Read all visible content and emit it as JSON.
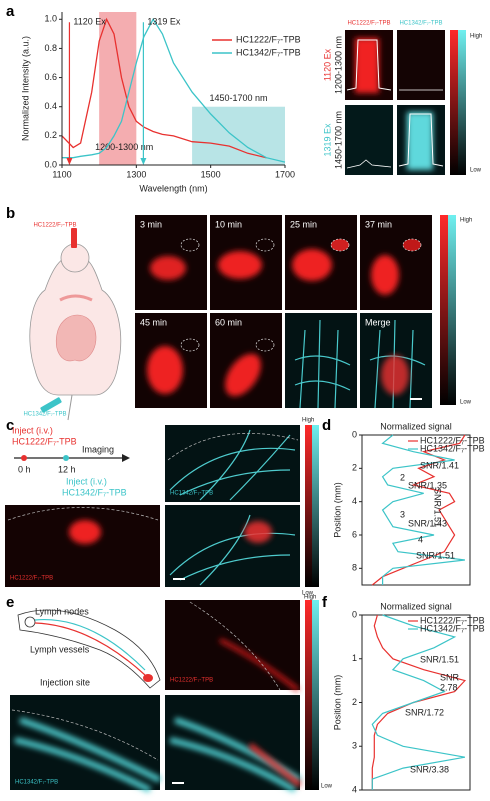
{
  "panel_labels": [
    "a",
    "b",
    "c",
    "d",
    "e",
    "f"
  ],
  "chart_data": [
    {
      "type": "line",
      "xlabel": "Wavelength (nm)",
      "ylabel": "Normalized Intensity (a.u.)",
      "x": [
        1100,
        1130,
        1150,
        1180,
        1200,
        1220,
        1240,
        1260,
        1280,
        1300,
        1320,
        1345,
        1370,
        1400,
        1450,
        1500,
        1550,
        1600,
        1650,
        1700
      ],
      "series": [
        {
          "name": "HC1222/F₇-TPB",
          "color": "#e8312f",
          "values": [
            0.2,
            0.12,
            0.15,
            0.5,
            0.85,
            1.0,
            0.9,
            0.6,
            0.4,
            0.3,
            0.26,
            0.23,
            0.21,
            0.2,
            0.16,
            0.15,
            0.13,
            0.08,
            0.05,
            null
          ]
        },
        {
          "name": "HC1342/F₇-TPB",
          "color": "#3cc4c8",
          "values": [
            0.05,
            0.05,
            0.06,
            0.07,
            0.08,
            0.12,
            0.2,
            0.3,
            0.5,
            0.7,
            0.88,
            1.0,
            0.9,
            0.7,
            0.5,
            0.35,
            0.22,
            0.12,
            0.05,
            0.02
          ]
        }
      ],
      "xlim": [
        1100,
        1700
      ],
      "ylim": [
        0,
        1.05
      ],
      "xticks": [
        1100,
        1300,
        1500,
        1700
      ],
      "yticks": [
        {
          "value": 0,
          "label": "0.0"
        },
        0.2,
        0.4,
        0.6,
        0.8,
        {
          "value": 1,
          "label": "1.0"
        }
      ],
      "bands": [
        {
          "label": "1200-1300 nm",
          "from": 1200,
          "to": 1300,
          "top": 1.05,
          "color": "#f08a8f"
        },
        {
          "label": "1450-1700 nm",
          "from": 1450,
          "to": 1700,
          "top": 0.4,
          "color": "#9ad9dc"
        }
      ],
      "excitations": [
        {
          "label": "1120 Ex",
          "value": 1120,
          "color": "#e8312f"
        },
        {
          "label": "1319 Ex",
          "value": 1319,
          "color": "#3cc4c8"
        }
      ],
      "legend": "upper right"
    },
    {
      "type": "profile",
      "title": "Normalized signal",
      "ylabel": "Position (mm)",
      "y": [
        0,
        0.5,
        1,
        1.5,
        2,
        2.5,
        3,
        3.5,
        4,
        4.5,
        5,
        5.5,
        6,
        6.5,
        7,
        7.5,
        8,
        8.5,
        9
      ],
      "series": [
        {
          "name": "HC1222/F₇-TPB",
          "color": "#e8312f",
          "values": [
            1.0,
            0.95,
            0.6,
            0.8,
            0.55,
            0.7,
            0.5,
            0.85,
            0.9,
            0.75,
            0.8,
            0.85,
            0.9,
            0.85,
            0.8,
            0.6,
            0.4,
            0.2,
            0.1
          ]
        },
        {
          "name": "HC1342/F₇-TPB",
          "color": "#3cc4c8",
          "values": [
            0.3,
            0.2,
            0.5,
            0.9,
            0.3,
            0.2,
            0.25,
            0.6,
            0.3,
            0.2,
            0.25,
            0.3,
            0.7,
            0.3,
            0.35,
            1.0,
            0.3,
            0.2,
            0.2
          ]
        }
      ],
      "xlim": [
        0,
        1.05
      ],
      "ylim": [
        0,
        9
      ],
      "yticks": [
        0,
        2,
        4,
        6,
        8
      ],
      "annotations": [
        "SNR/1.41",
        "2",
        "SNR/1.35",
        "3",
        "SNR/1.43",
        "4",
        "SNR/1.51",
        "SNR/1.51"
      ],
      "legend": "upper right"
    },
    {
      "type": "profile",
      "title": "Normalized signal",
      "ylabel": "Position (mm)",
      "y": [
        0,
        0.25,
        0.5,
        0.75,
        1,
        1.25,
        1.5,
        1.75,
        2,
        2.25,
        2.5,
        2.75,
        3,
        3.25,
        3.5,
        3.75,
        4
      ],
      "series": [
        {
          "name": "HC1222/F₇-TPB",
          "color": "#e8312f",
          "values": [
            0.15,
            0.12,
            0.15,
            0.2,
            0.3,
            0.6,
            1.0,
            0.9,
            0.5,
            0.25,
            0.15,
            0.12,
            0.12,
            0.12,
            0.1,
            0.1,
            0.1
          ]
        },
        {
          "name": "HC1342/F₇-TPB",
          "color": "#3cc4c8",
          "values": [
            0.2,
            0.5,
            0.9,
            0.7,
            0.4,
            0.3,
            0.6,
            0.8,
            0.5,
            0.2,
            0.1,
            0.15,
            0.4,
            1.0,
            0.4,
            0.1,
            0.1
          ]
        }
      ],
      "xlim": [
        0,
        1.05
      ],
      "ylim": [
        0,
        4
      ],
      "yticks": [
        0,
        1,
        2,
        3,
        4
      ],
      "annotations": [
        "SNR/1.51",
        "SNR",
        "2.78",
        "SNR/1.72",
        "SNR/3.38"
      ],
      "legend": "upper right"
    }
  ],
  "panel_a_images": {
    "columns": [
      "HC1222/F₇-TPB",
      "HC1342/F₇-TPB"
    ],
    "rows": [
      "1120 Ex",
      "1319 Ex"
    ],
    "row_bands": [
      "1200-1300 nm",
      "1450-1700 nm"
    ],
    "colorbar": [
      "High",
      "Low"
    ]
  },
  "panel_b": {
    "mouse_labels": [
      "HC1222/F₇-TPB",
      "HC1342/F₇-TPB"
    ],
    "frames": [
      "3 min",
      "10 min",
      "25 min",
      "37 min",
      "45 min",
      "60 min",
      "Merge"
    ],
    "colorbar": [
      "High",
      "Low"
    ]
  },
  "panel_c": {
    "timeline": [
      "Inject (i.v.)",
      "HC1222/F₇-TPB",
      "Imaging",
      "0 h",
      "12 h",
      "Inject (i.v.)",
      "HC1342/F₇-TPB"
    ],
    "image_labels": [
      "HC1342/F₇-TPB",
      "HC1222/F₇-TPB"
    ],
    "colorbar": [
      "High",
      "Low"
    ]
  },
  "panel_e": {
    "diagram": [
      "Lymph nodes",
      "Lymph vessels",
      "Injection site"
    ],
    "image_labels": [
      "HC1222/F₇-TPB",
      "HC1342/F₇-TPB"
    ],
    "colorbar": [
      "High",
      "Low"
    ]
  }
}
